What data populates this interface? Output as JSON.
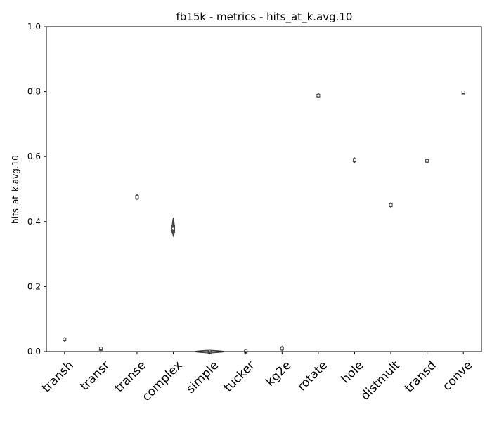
{
  "chart_data": {
    "type": "violin",
    "title": "fb15k - metrics - hits_at_k.avg.10",
    "xlabel": "",
    "ylabel": "hits_at_k.avg.10",
    "ylim": [
      0,
      1.0
    ],
    "yticks": [
      "0.0",
      "0.2",
      "0.4",
      "0.6",
      "0.8",
      "1.0"
    ],
    "categories": [
      "transh",
      "transr",
      "transe",
      "complex",
      "simple",
      "tucker",
      "kg2e",
      "rotate",
      "hole",
      "distmult",
      "transd",
      "conve"
    ],
    "distributions": [
      {
        "category": "transh",
        "min": 0.034,
        "q1": 0.036,
        "median": 0.038,
        "q3": 0.04,
        "max": 0.041,
        "halfwidth": 0.004
      },
      {
        "category": "transr",
        "min": 0.009,
        "q1": 0.009,
        "median": 0.01,
        "q3": 0.01,
        "max": 0.011,
        "halfwidth": 0.015
      },
      {
        "category": "transe",
        "min": 0.47,
        "q1": 0.472,
        "median": 0.475,
        "q3": 0.478,
        "max": 0.481,
        "halfwidth": 0.005
      },
      {
        "category": "complex",
        "min": 0.355,
        "q1": 0.368,
        "median": 0.378,
        "q3": 0.388,
        "max": 0.41,
        "halfwidth": 0.006
      },
      {
        "category": "simple",
        "min": 0.0,
        "q1": 0.0,
        "median": 0.0,
        "q3": 0.001,
        "max": 0.002,
        "halfwidth": 0.4
      },
      {
        "category": "tucker",
        "min": 0.0,
        "q1": 0.0,
        "median": 0.001,
        "q3": 0.002,
        "max": 0.003,
        "halfwidth": 0.01
      },
      {
        "category": "kg2e",
        "min": 0.005,
        "q1": 0.007,
        "median": 0.009,
        "q3": 0.012,
        "max": 0.014,
        "halfwidth": 0.004
      },
      {
        "category": "rotate",
        "min": 0.784,
        "q1": 0.786,
        "median": 0.788,
        "q3": 0.79,
        "max": 0.792,
        "halfwidth": 0.007
      },
      {
        "category": "hole",
        "min": 0.584,
        "q1": 0.586,
        "median": 0.589,
        "q3": 0.592,
        "max": 0.594,
        "halfwidth": 0.005
      },
      {
        "category": "distmult",
        "min": 0.446,
        "q1": 0.448,
        "median": 0.451,
        "q3": 0.454,
        "max": 0.456,
        "halfwidth": 0.005
      },
      {
        "category": "transd",
        "min": 0.583,
        "q1": 0.585,
        "median": 0.587,
        "q3": 0.589,
        "max": 0.591,
        "halfwidth": 0.005
      },
      {
        "category": "conve",
        "min": 0.798,
        "q1": 0.798,
        "median": 0.799,
        "q3": 0.799,
        "max": 0.8,
        "halfwidth": 0.014
      }
    ],
    "grid": false,
    "colors": {
      "outline": "#444444",
      "fill": "#ffffff",
      "axis": "#000000",
      "text": "#000000"
    }
  }
}
